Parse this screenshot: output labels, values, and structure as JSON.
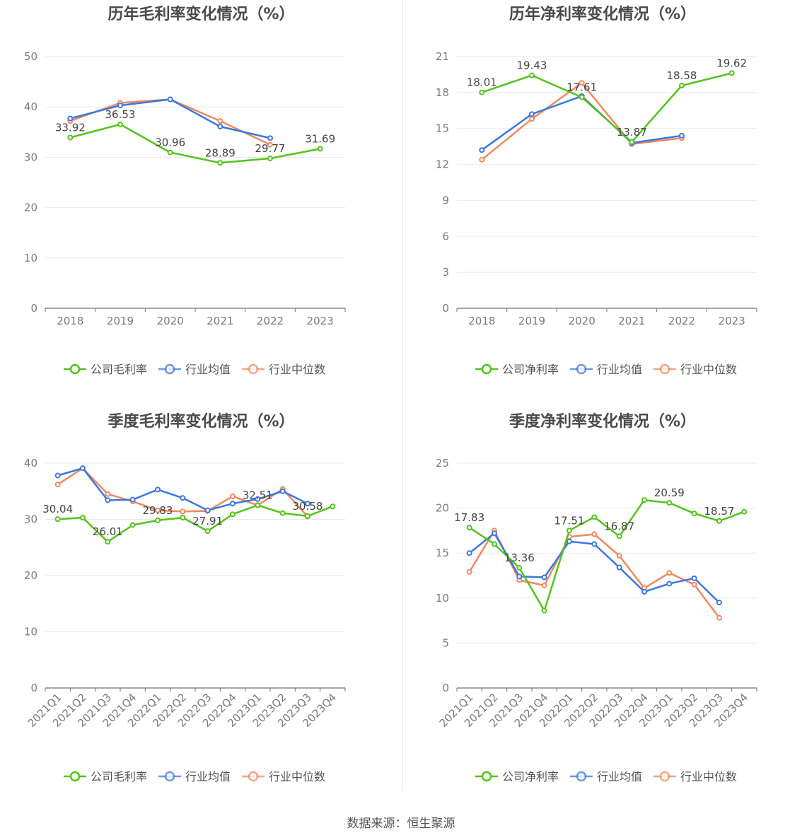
{
  "source": "数据来源：恒生聚源",
  "colors": {
    "company": "#52c41a",
    "avg": "#3a78e0",
    "median": "#f4875e"
  },
  "chart_data": [
    {
      "id": "annual-gross",
      "type": "line",
      "title": "历年毛利率变化情况（%）",
      "categories": [
        "2018",
        "2019",
        "2020",
        "2021",
        "2022",
        "2023"
      ],
      "ylim": [
        0,
        50
      ],
      "yticks": [
        0,
        10,
        20,
        30,
        40,
        50
      ],
      "series": [
        {
          "name": "公司毛利率",
          "values": [
            33.92,
            36.53,
            30.96,
            28.89,
            29.77,
            31.69
          ],
          "labels": true
        },
        {
          "name": "行业均值",
          "values": [
            37.7,
            40.3,
            41.5,
            36.1,
            33.8,
            null
          ]
        },
        {
          "name": "行业中位数",
          "values": [
            37.2,
            40.8,
            41.5,
            37.2,
            32.5,
            null
          ]
        }
      ]
    },
    {
      "id": "annual-net",
      "type": "line",
      "title": "历年净利率变化情况（%）",
      "categories": [
        "2018",
        "2019",
        "2020",
        "2021",
        "2022",
        "2023"
      ],
      "ylim": [
        0,
        21
      ],
      "yticks": [
        0,
        3,
        6,
        9,
        12,
        15,
        18,
        21
      ],
      "series": [
        {
          "name": "公司净利率",
          "values": [
            18.01,
            19.43,
            17.61,
            13.87,
            18.58,
            19.62
          ],
          "labels": true
        },
        {
          "name": "行业均值",
          "values": [
            13.2,
            16.2,
            17.7,
            13.8,
            14.4,
            null
          ]
        },
        {
          "name": "行业中位数",
          "values": [
            12.4,
            15.8,
            18.8,
            13.7,
            14.2,
            null
          ]
        }
      ]
    },
    {
      "id": "quarterly-gross",
      "type": "line",
      "title": "季度毛利率变化情况（%）",
      "categories": [
        "2021Q1",
        "2021Q2",
        "2021Q3",
        "2021Q4",
        "2022Q1",
        "2022Q2",
        "2022Q3",
        "2022Q4",
        "2023Q1",
        "2023Q2",
        "2023Q3",
        "2023Q4"
      ],
      "ylim": [
        0,
        40
      ],
      "yticks": [
        0,
        10,
        20,
        30,
        40
      ],
      "series": [
        {
          "name": "公司毛利率",
          "values": [
            30.04,
            30.3,
            26.01,
            29.0,
            29.83,
            30.3,
            27.91,
            30.9,
            32.51,
            31.1,
            30.58,
            32.3
          ],
          "label_values": [
            "30.04",
            null,
            "26.01",
            null,
            "29.83",
            null,
            "27.91",
            null,
            "32.51",
            null,
            "30.58",
            null
          ]
        },
        {
          "name": "行业均值",
          "values": [
            37.8,
            39.1,
            33.4,
            33.5,
            35.3,
            33.8,
            31.6,
            32.8,
            33.6,
            35.0,
            32.8,
            null
          ]
        },
        {
          "name": "行业中位数",
          "values": [
            36.2,
            39.1,
            34.5,
            33.2,
            31.6,
            31.4,
            31.5,
            34.1,
            32.5,
            35.4,
            30.5,
            null
          ]
        }
      ]
    },
    {
      "id": "quarterly-net",
      "type": "line",
      "title": "季度净利率变化情况（%）",
      "categories": [
        "2021Q1",
        "2021Q2",
        "2021Q3",
        "2021Q4",
        "2022Q1",
        "2022Q2",
        "2022Q3",
        "2022Q4",
        "2023Q1",
        "2023Q2",
        "2023Q3",
        "2023Q4"
      ],
      "ylim": [
        0,
        25
      ],
      "yticks": [
        0,
        5,
        10,
        15,
        20,
        25
      ],
      "series": [
        {
          "name": "公司净利率",
          "values": [
            17.83,
            16.0,
            13.36,
            8.6,
            17.51,
            19.0,
            16.87,
            20.9,
            20.59,
            19.4,
            18.57,
            19.6
          ],
          "label_values": [
            "17.83",
            null,
            "13.36",
            null,
            "17.51",
            null,
            "16.87",
            null,
            "20.59",
            null,
            "18.57",
            null
          ]
        },
        {
          "name": "行业均值",
          "values": [
            15.0,
            17.2,
            12.4,
            12.3,
            16.3,
            16.0,
            13.4,
            10.7,
            11.6,
            12.2,
            9.5,
            null
          ]
        },
        {
          "name": "行业中位数",
          "values": [
            12.9,
            17.5,
            12.0,
            11.4,
            16.8,
            17.1,
            14.7,
            11.1,
            12.8,
            11.5,
            7.8,
            null
          ]
        }
      ]
    }
  ]
}
